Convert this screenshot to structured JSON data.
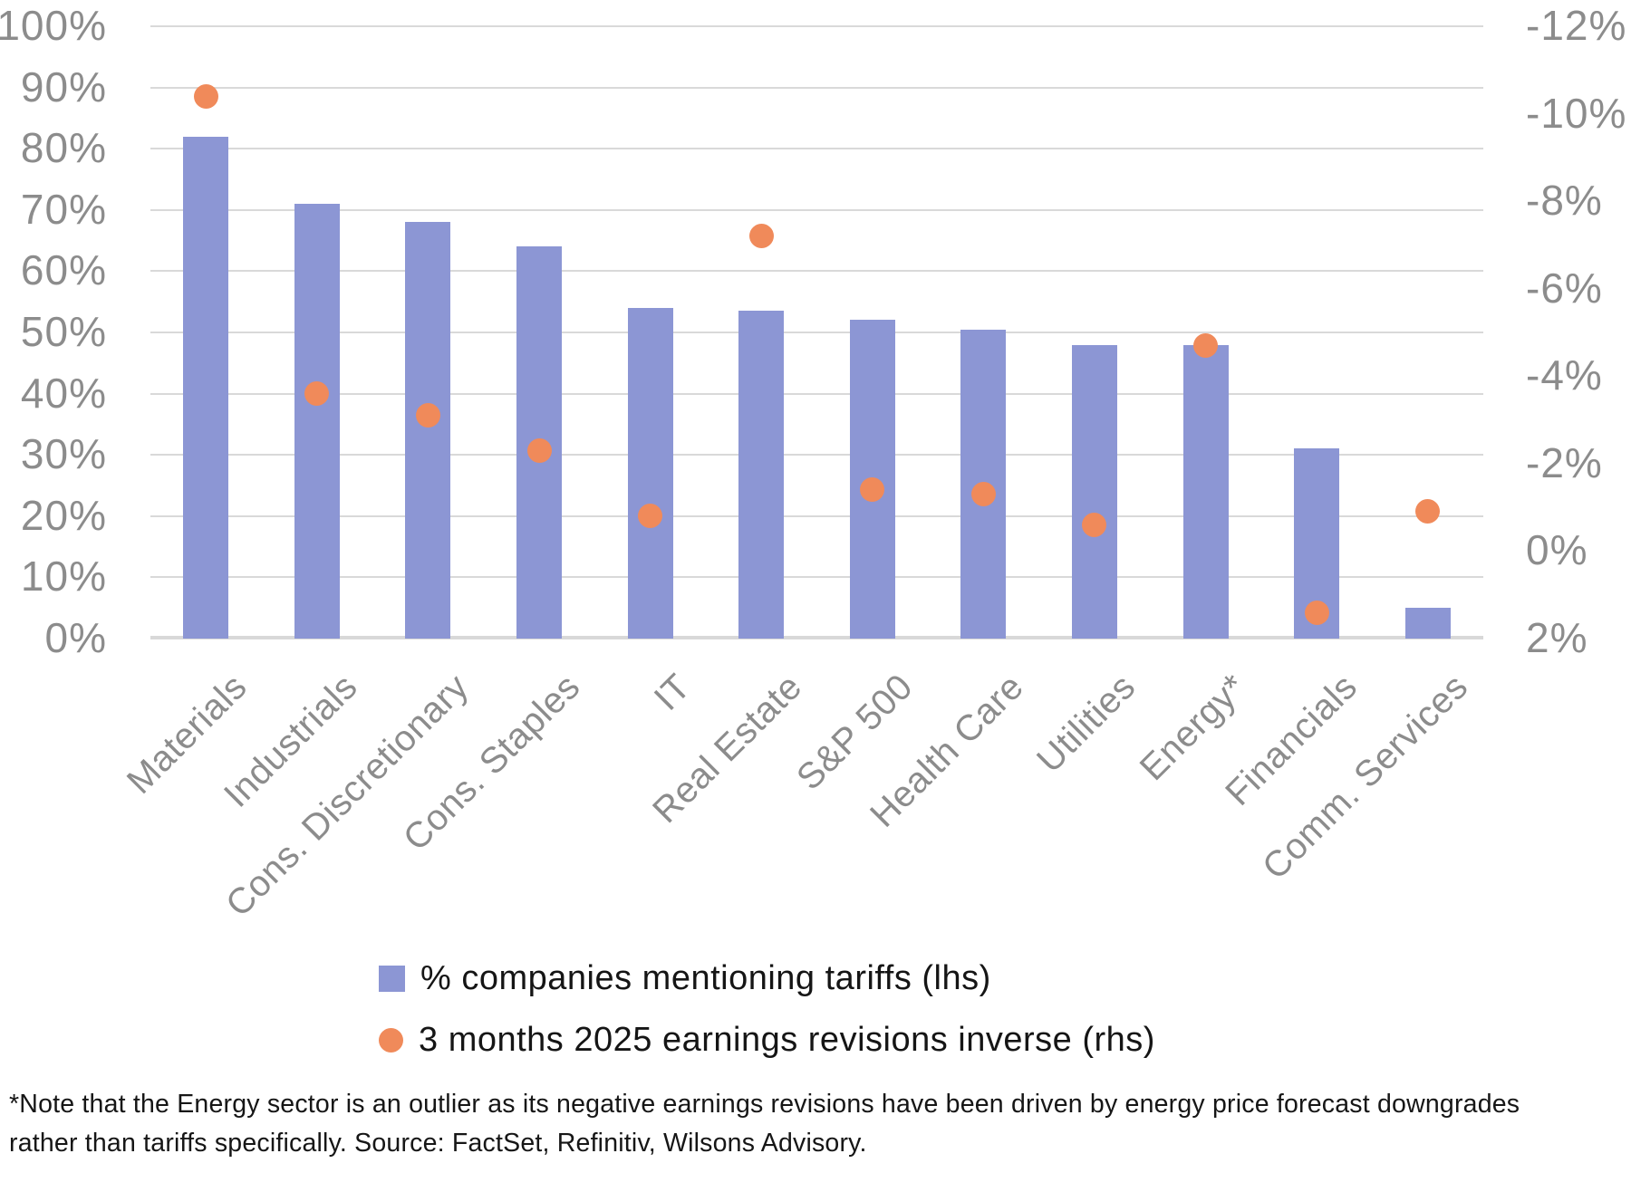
{
  "chart_data": {
    "type": "bar",
    "subtype": "bar+scatter combo, dual axis",
    "categories": [
      "Materials",
      "Industrials",
      "Cons. Discretionary",
      "Cons. Staples",
      "IT",
      "Real Estate",
      "S&P 500",
      "Health Care",
      "Utilities",
      "Energy*",
      "Financials",
      "Comm. Services"
    ],
    "series": [
      {
        "name": "% companies mentioning tariffs (lhs)",
        "type": "bar",
        "axis": "left",
        "unit": "%",
        "color": "#8C96D4",
        "values": [
          82,
          71,
          68,
          64,
          54,
          53.5,
          52,
          50.5,
          48,
          48,
          31,
          5
        ]
      },
      {
        "name": "3 months 2025 earnings revisions inverse (rhs)",
        "type": "scatter",
        "axis": "right",
        "unit": "%",
        "color": "#F08A5A",
        "values": [
          -10.4,
          -3.6,
          -3.1,
          -2.3,
          -0.8,
          -7.2,
          -1.4,
          -1.3,
          -0.6,
          -4.7,
          1.4,
          -0.9
        ]
      }
    ],
    "left_axis": {
      "min": 0,
      "max": 100,
      "step": 10,
      "labels": [
        "100%",
        "90%",
        "80%",
        "70%",
        "60%",
        "50%",
        "40%",
        "30%",
        "20%",
        "10%",
        "0%"
      ]
    },
    "right_axis": {
      "top_value": -12,
      "bottom_value": 2,
      "step": 2,
      "inverted": true,
      "labels": [
        "-12%",
        "-10%",
        "-8%",
        "-6%",
        "-4%",
        "-2%",
        "0%",
        "2%"
      ]
    },
    "grid": true,
    "legend_position": "bottom",
    "title": ""
  },
  "legend": {
    "items": [
      {
        "marker": "square-icon",
        "label": "% companies mentioning tariffs (lhs)"
      },
      {
        "marker": "circle-icon",
        "label": "3 months 2025 earnings revisions inverse (rhs)"
      }
    ]
  },
  "footnote": {
    "line1": "*Note that the Energy sector is an outlier as its negative earnings revisions have been driven by energy price forecast downgrades",
    "line2": "rather than tariffs specifically. Source: FactSet, Refinitiv, Wilsons Advisory."
  },
  "colors": {
    "bar": "#8C96D4",
    "dot": "#F08A5A",
    "gridline": "#D9D9D9",
    "axis_line": "#D8D8D8",
    "tick_text": "#8C8C8C",
    "category_text": "#8C8C8C",
    "body_text": "#161616"
  }
}
